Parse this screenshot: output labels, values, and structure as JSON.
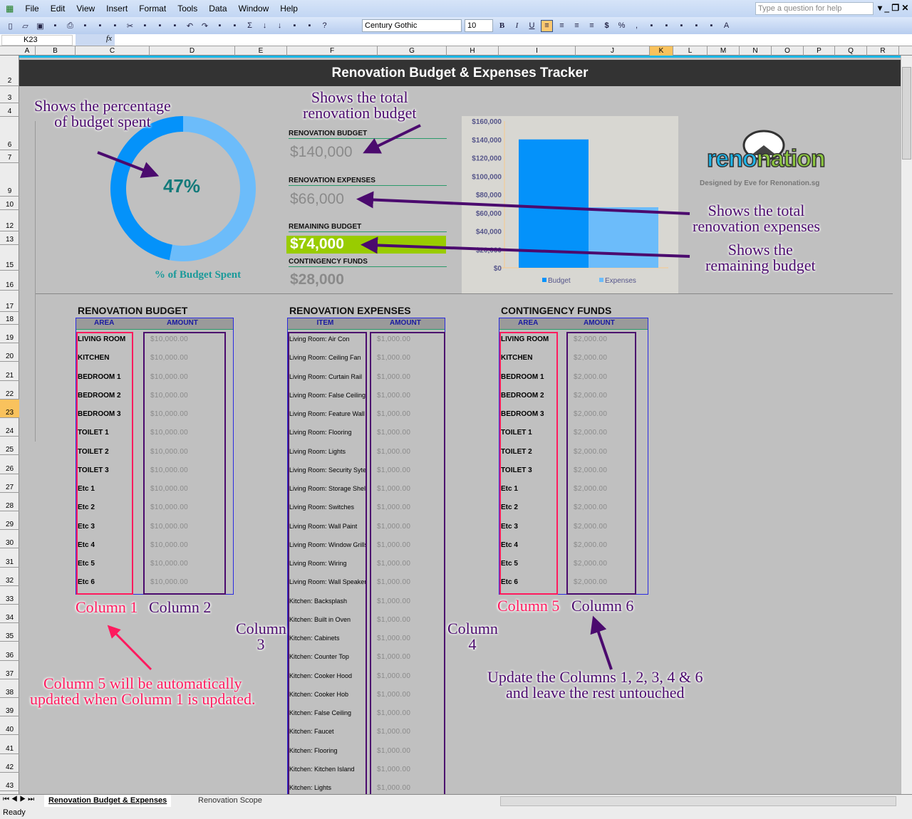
{
  "menu": {
    "items": [
      "File",
      "Edit",
      "View",
      "Insert",
      "Format",
      "Tools",
      "Data",
      "Window",
      "Help"
    ],
    "help_placeholder": "Type a question for help"
  },
  "toolbar": {
    "font": "Century Gothic",
    "size": "10",
    "bold": "B",
    "italic": "I",
    "underline": "U",
    "currency": "$",
    "percent": "%",
    "comma": ","
  },
  "formula": {
    "name_box": "K23",
    "fx": "fx",
    "value": ""
  },
  "columns": [
    "A",
    "B",
    "C",
    "D",
    "E",
    "F",
    "G",
    "H",
    "I",
    "J",
    "K",
    "L",
    "M",
    "N",
    "O",
    "P",
    "Q",
    "R"
  ],
  "selected_column": "K",
  "rows": [
    2,
    3,
    4,
    6,
    7,
    9,
    10,
    12,
    13,
    15,
    16,
    17,
    18,
    19,
    20,
    21,
    22,
    23,
    24,
    25,
    26,
    27,
    28,
    29,
    30,
    31,
    32,
    33,
    34,
    35,
    36,
    37,
    38,
    39,
    40,
    41,
    42,
    43
  ],
  "selected_row": 23,
  "title": "Renovation Budget & Expenses Tracker",
  "donut": {
    "percent": 47,
    "label": "47%",
    "caption": "% of Budget Spent",
    "spent_color": "#0492fa",
    "remaining_color": "#6cbcfa"
  },
  "kpis": {
    "budget_label": "RENOVATION BUDGET",
    "budget_value": "$140,000",
    "expenses_label": "RENOVATION EXPENSES",
    "expenses_value": "$66,000",
    "remaining_label": "REMAINING BUDGET",
    "remaining_value": "$74,000",
    "remaining_color": "#99cc00",
    "contingency_label": "CONTINGENCY FUNDS",
    "contingency_value": "$28,000"
  },
  "chart_data": {
    "type": "bar",
    "categories": [
      "Budget",
      "Expenses"
    ],
    "values": [
      140000,
      66000
    ],
    "colors": [
      "#0492fa",
      "#6cbcfa"
    ],
    "yticks": [
      "$0",
      "$20,000",
      "$40,000",
      "$60,000",
      "$80,000",
      "$100,000",
      "$120,000",
      "$140,000",
      "$160,000"
    ],
    "ylim": [
      0,
      160000
    ],
    "legend": "bottom",
    "grid": false
  },
  "logo": {
    "text_reno": "reno",
    "text_nation": "nation",
    "credit": "Designed by Eve for Renonation.sg"
  },
  "annotations": {
    "pct": "Shows the percentage\nof budget spent",
    "total_budget": "Shows the total\nrenovation budget",
    "total_expenses": "Shows the total\nrenovation expenses",
    "remaining": "Shows the\nremaining budget",
    "col1": "Column 1",
    "col2": "Column 2",
    "col3": "Column 3",
    "col4": "Column 4",
    "col5": "Column 5",
    "col6": "Column 6",
    "col5_note": "Column 5 will be automatically\nupdated when Column 1 is updated.",
    "update_note": "Update the Columns 1, 2, 3, 4 & 6\nand leave the rest untouched"
  },
  "budget_table": {
    "title": "RENOVATION BUDGET",
    "headers": [
      "AREA",
      "AMOUNT"
    ],
    "rows": [
      [
        "LIVING ROOM",
        "$10,000.00"
      ],
      [
        "KITCHEN",
        "$10,000.00"
      ],
      [
        "BEDROOM 1",
        "$10,000.00"
      ],
      [
        "BEDROOM 2",
        "$10,000.00"
      ],
      [
        "BEDROOM 3",
        "$10,000.00"
      ],
      [
        "TOILET 1",
        "$10,000.00"
      ],
      [
        "TOILET 2",
        "$10,000.00"
      ],
      [
        "TOILET 3",
        "$10,000.00"
      ],
      [
        "Etc 1",
        "$10,000.00"
      ],
      [
        "Etc 2",
        "$10,000.00"
      ],
      [
        "Etc 3",
        "$10,000.00"
      ],
      [
        "Etc 4",
        "$10,000.00"
      ],
      [
        "Etc 5",
        "$10,000.00"
      ],
      [
        "Etc 6",
        "$10,000.00"
      ]
    ]
  },
  "expenses_table": {
    "title": "RENOVATION EXPENSES",
    "headers": [
      "ITEM",
      "AMOUNT"
    ],
    "rows": [
      [
        "Living Room:  Air Con",
        "$1,000.00"
      ],
      [
        "Living Room:  Ceiling Fan",
        "$1,000.00"
      ],
      [
        "Living Room:  Curtain Rail",
        "$1,000.00"
      ],
      [
        "Living Room: False Ceiling",
        "$1,000.00"
      ],
      [
        "Living Room: Feature Wall",
        "$1,000.00"
      ],
      [
        "Living Room: Flooring",
        "$1,000.00"
      ],
      [
        "Living Room: Lights",
        "$1,000.00"
      ],
      [
        "Living Room: Security Sytem",
        "$1,000.00"
      ],
      [
        "Living Room: Storage Shelves",
        "$1,000.00"
      ],
      [
        "Living Room: Switches",
        "$1,000.00"
      ],
      [
        "Living Room: Wall Paint",
        "$1,000.00"
      ],
      [
        "Living Room: Window Grills",
        "$1,000.00"
      ],
      [
        "Living Room: Wiring",
        "$1,000.00"
      ],
      [
        "Living Room: Wall Speakers",
        "$1,000.00"
      ],
      [
        "Kitchen:  Backsplash",
        "$1,000.00"
      ],
      [
        "Kitchen:  Built in Oven",
        "$1,000.00"
      ],
      [
        "Kitchen:  Cabinets",
        "$1,000.00"
      ],
      [
        "Kitchen:  Counter Top",
        "$1,000.00"
      ],
      [
        "Kitchen:  Cooker Hood",
        "$1,000.00"
      ],
      [
        "Kitchen:  Cooker Hob",
        "$1,000.00"
      ],
      [
        "Kitchen: False Ceiling",
        "$1,000.00"
      ],
      [
        "Kitchen: Faucet",
        "$1,000.00"
      ],
      [
        "Kitchen: Flooring",
        "$1,000.00"
      ],
      [
        "Kitchen: Kitchen Island",
        "$1,000.00"
      ],
      [
        "Kitchen: Lights",
        "$1,000.00"
      ]
    ]
  },
  "contingency_table": {
    "title": "CONTINGENCY FUNDS",
    "headers": [
      "AREA",
      "AMOUNT"
    ],
    "rows": [
      [
        "LIVING ROOM",
        "$2,000.00"
      ],
      [
        "KITCHEN",
        "$2,000.00"
      ],
      [
        "BEDROOM 1",
        "$2,000.00"
      ],
      [
        "BEDROOM 2",
        "$2,000.00"
      ],
      [
        "BEDROOM 3",
        "$2,000.00"
      ],
      [
        "TOILET 1",
        "$2,000.00"
      ],
      [
        "TOILET 2",
        "$2,000.00"
      ],
      [
        "TOILET 3",
        "$2,000.00"
      ],
      [
        "Etc 1",
        "$2,000.00"
      ],
      [
        "Etc 2",
        "$2,000.00"
      ],
      [
        "Etc 3",
        "$2,000.00"
      ],
      [
        "Etc 4",
        "$2,000.00"
      ],
      [
        "Etc 5",
        "$2,000.00"
      ],
      [
        "Etc 6",
        "$2,000.00"
      ]
    ]
  },
  "sheet_tabs": [
    "Renovation Budget & Expenses",
    "Renovation Scope"
  ],
  "status": "Ready"
}
